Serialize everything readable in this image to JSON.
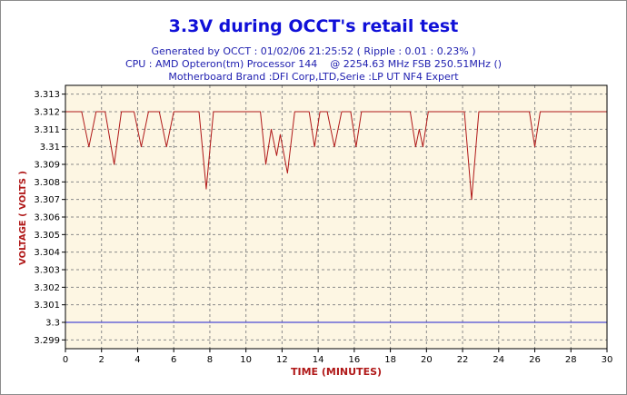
{
  "colors": {
    "title": "#1010d8",
    "subtitle": "#2020b0",
    "axis_label": "#b01818",
    "plot_bg": "#fdf6e3",
    "grid": "#8a8a8a",
    "voltage_line": "#b01818",
    "reference_line": "#2020d0"
  },
  "chart_data": {
    "type": "line",
    "title": "3.3V during OCCT's retail test",
    "subtitle_lines": [
      "Generated by OCCT : 01/02/06 21:25:52 ( Ripple : 0.01 : 0.23% )",
      "CPU : AMD Opteron(tm) Processor 144    @ 2254.63 MHz FSB 250.51MHz ()",
      "Motherboard Brand :DFI Corp,LTD,Serie :LP UT NF4 Expert"
    ],
    "xlabel": "TIME (MINUTES)",
    "ylabel": "VOLTAGE ( VOLTS )",
    "xlim": [
      0,
      30
    ],
    "ylim": [
      3.2985,
      3.3135
    ],
    "x_ticks": [
      0,
      2,
      4,
      6,
      8,
      10,
      12,
      14,
      16,
      18,
      20,
      22,
      24,
      26,
      28,
      30
    ],
    "y_ticks": [
      "3.299",
      "3.3",
      "3.301",
      "3.302",
      "3.303",
      "3.304",
      "3.305",
      "3.306",
      "3.307",
      "3.308",
      "3.309",
      "3.31",
      "3.311",
      "3.312",
      "3.313"
    ],
    "grid": true,
    "series": [
      {
        "color": "#b01818",
        "points": [
          [
            0,
            3.312
          ],
          [
            0.9,
            3.312
          ],
          [
            1.3,
            3.31
          ],
          [
            1.7,
            3.312
          ],
          [
            2.2,
            3.312
          ],
          [
            2.7,
            3.309
          ],
          [
            3.1,
            3.312
          ],
          [
            3.8,
            3.312
          ],
          [
            4.2,
            3.31
          ],
          [
            4.6,
            3.312
          ],
          [
            5.2,
            3.312
          ],
          [
            5.6,
            3.31
          ],
          [
            6.0,
            3.312
          ],
          [
            7.4,
            3.312
          ],
          [
            7.8,
            3.3076
          ],
          [
            8.2,
            3.312
          ],
          [
            10.8,
            3.312
          ],
          [
            11.1,
            3.309
          ],
          [
            11.4,
            3.311
          ],
          [
            11.7,
            3.3095
          ],
          [
            11.9,
            3.3107
          ],
          [
            12.3,
            3.3085
          ],
          [
            12.7,
            3.312
          ],
          [
            13.5,
            3.312
          ],
          [
            13.8,
            3.31
          ],
          [
            14.1,
            3.312
          ],
          [
            14.5,
            3.312
          ],
          [
            14.9,
            3.31
          ],
          [
            15.3,
            3.312
          ],
          [
            15.8,
            3.312
          ],
          [
            16.1,
            3.31
          ],
          [
            16.4,
            3.312
          ],
          [
            19.1,
            3.312
          ],
          [
            19.4,
            3.31
          ],
          [
            19.6,
            3.311
          ],
          [
            19.8,
            3.31
          ],
          [
            20.1,
            3.312
          ],
          [
            22.1,
            3.312
          ],
          [
            22.5,
            3.307
          ],
          [
            22.9,
            3.312
          ],
          [
            25.7,
            3.312
          ],
          [
            26.0,
            3.31
          ],
          [
            26.3,
            3.312
          ],
          [
            30,
            3.312
          ]
        ]
      },
      {
        "color": "#2020d0",
        "points": [
          [
            0,
            3.3
          ],
          [
            30,
            3.3
          ]
        ]
      }
    ]
  }
}
